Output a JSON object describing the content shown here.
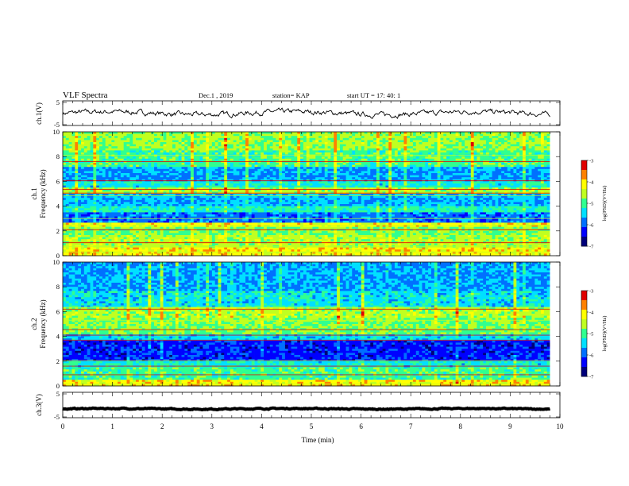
{
  "header": {
    "title": "VLF Spectra",
    "date": "Dec.1 , 2019",
    "station": "station= KAP",
    "start": "start  UT =   17: 40: 1"
  },
  "colors": {
    "colormap": [
      "#00007a",
      "#0000ff",
      "#0070ff",
      "#00e0ff",
      "#30ff90",
      "#c0ff20",
      "#ffff00",
      "#ff8000",
      "#e00000",
      "#ffffff"
    ],
    "trace": "#000000"
  },
  "chart_data": [
    {
      "type": "line",
      "name": "ch1-waveform",
      "ylabel": "ch.1(V)",
      "ylim": [
        -5,
        5
      ],
      "yticks": [
        "5",
        "-5"
      ],
      "xlim": [
        0,
        10
      ],
      "x_end": 9.8,
      "baseline": 0,
      "amplitude": 1.2
    },
    {
      "type": "heatmap",
      "name": "ch1-spectrogram",
      "ylabel_line1": "ch.1",
      "ylabel_line2": "Frequency (kHz)",
      "ylim": [
        0,
        10
      ],
      "yticks": [
        "0",
        "2",
        "4",
        "6",
        "8",
        "10"
      ],
      "xlim": [
        0,
        9.8
      ],
      "colorbar": {
        "label": "log(PSD)(V²/Hz)",
        "range": [
          -7,
          -3
        ],
        "ticks": [
          "-3",
          "-4",
          "-5",
          "-6",
          "-7"
        ]
      },
      "bands": [
        {
          "from": 0,
          "to": 0.6,
          "level": 0.72
        },
        {
          "from": 0.6,
          "to": 1.6,
          "level": 0.6
        },
        {
          "from": 1.6,
          "to": 2.3,
          "level": 0.55
        },
        {
          "from": 2.3,
          "to": 2.6,
          "level": 0.7
        },
        {
          "from": 2.6,
          "to": 3.5,
          "level": 0.28
        },
        {
          "from": 3.5,
          "to": 4.0,
          "level": 0.45
        },
        {
          "from": 4.0,
          "to": 5.0,
          "level": 0.35
        },
        {
          "from": 5.0,
          "to": 5.5,
          "level": 0.6
        },
        {
          "from": 5.5,
          "to": 6.0,
          "level": 0.42
        },
        {
          "from": 6.0,
          "to": 7.2,
          "level": 0.32
        },
        {
          "from": 7.2,
          "to": 8.5,
          "level": 0.5
        },
        {
          "from": 8.5,
          "to": 10,
          "level": 0.58
        }
      ],
      "lines_khz": [
        0.3,
        0.75,
        1.05,
        2.1,
        2.45,
        3.0,
        4.85,
        5.05,
        5.35,
        6.05,
        7.6,
        8.1
      ]
    },
    {
      "type": "heatmap",
      "name": "ch2-spectrogram",
      "ylabel_line1": "ch.2",
      "ylabel_line2": "Frequency (kHz)",
      "ylim": [
        0,
        10
      ],
      "yticks": [
        "0",
        "2",
        "4",
        "6",
        "8",
        "10"
      ],
      "xlim": [
        0,
        9.8
      ],
      "colorbar": {
        "label": "log(PSD)(V²/Hz)",
        "range": [
          -7,
          -3
        ],
        "ticks": [
          "-3",
          "-4",
          "-5",
          "-6",
          "-7"
        ]
      },
      "bands": [
        {
          "from": 0,
          "to": 0.5,
          "level": 0.72
        },
        {
          "from": 0.5,
          "to": 1.5,
          "level": 0.5
        },
        {
          "from": 1.5,
          "to": 2.0,
          "level": 0.42
        },
        {
          "from": 2.0,
          "to": 3.6,
          "level": 0.18
        },
        {
          "from": 3.6,
          "to": 4.2,
          "level": 0.38
        },
        {
          "from": 4.2,
          "to": 5.5,
          "level": 0.55
        },
        {
          "from": 5.5,
          "to": 6.3,
          "level": 0.6
        },
        {
          "from": 6.3,
          "to": 7.6,
          "level": 0.4
        },
        {
          "from": 7.6,
          "to": 10,
          "level": 0.33
        }
      ],
      "lines_khz": [
        0.15,
        0.9,
        1.6,
        2.05,
        3.7,
        4.1,
        4.55,
        5.3,
        6.2,
        6.35
      ]
    },
    {
      "type": "line",
      "name": "ch3-waveform",
      "ylabel": "ch.3(V)",
      "ylim": [
        -5,
        5
      ],
      "yticks": [
        "5",
        "-5"
      ],
      "xlim": [
        0,
        10
      ],
      "x_end": 9.8,
      "baseline": -1.5,
      "amplitude": 0.25
    }
  ],
  "time_axis": {
    "xlabel": "Time (min)",
    "ticks": [
      "0",
      "1",
      "2",
      "3",
      "4",
      "5",
      "6",
      "7",
      "8",
      "9",
      "10"
    ]
  }
}
